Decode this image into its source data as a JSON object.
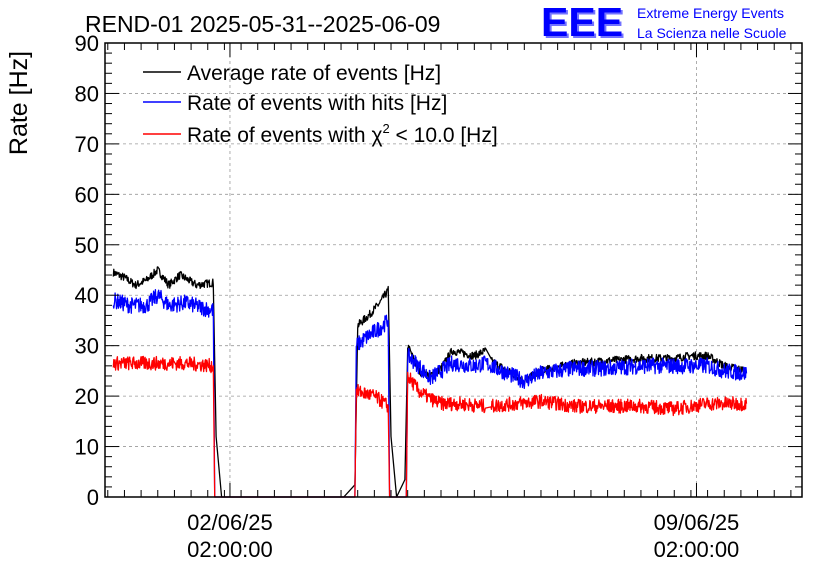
{
  "chart_data": {
    "type": "line",
    "title": "REND-01 2025-05-31--2025-06-09",
    "ylabel": "Rate [Hz]",
    "xlabel": "",
    "ylim": [
      0,
      90
    ],
    "yticks": [
      0,
      10,
      20,
      30,
      40,
      50,
      60,
      70,
      80,
      90
    ],
    "xlim": [
      "2025-05-31 05:00",
      "2025-06-10 16:00"
    ],
    "x_ticks": [
      {
        "x": "2025-06-02 02:00",
        "line1": "02/06/25",
        "line2": "02:00:00"
      },
      {
        "x": "2025-06-09 02:00",
        "line1": "09/06/25",
        "line2": "02:00:00"
      }
    ],
    "grid": true,
    "legend_position": "top-left",
    "series": [
      {
        "name": "Average rate of events [Hz]",
        "color": "#000000",
        "noise": 0.8,
        "points": [
          [
            "2025-05-31 08:00",
            44.5
          ],
          [
            "2025-05-31 12:00",
            43.5
          ],
          [
            "2025-05-31 16:00",
            42.0
          ],
          [
            "2025-05-31 20:00",
            43.0
          ],
          [
            "2025-06-01 00:00",
            45.0
          ],
          [
            "2025-06-01 04:00",
            42.0
          ],
          [
            "2025-06-01 08:00",
            44.0
          ],
          [
            "2025-06-01 14:00",
            42.0
          ],
          [
            "2025-06-01 20:00",
            42.5
          ],
          [
            "2025-06-01 21:00",
            12.0
          ],
          [
            "2025-06-01 23:00",
            0.0
          ],
          [
            "2025-06-03 19:00",
            0.0
          ],
          [
            "2025-06-03 23:00",
            3.0
          ],
          [
            "2025-06-04 00:00",
            34.0
          ],
          [
            "2025-06-04 04:00",
            36.0
          ],
          [
            "2025-06-04 08:00",
            38.5
          ],
          [
            "2025-06-04 11:00",
            41.0
          ],
          [
            "2025-06-04 12:00",
            12.0
          ],
          [
            "2025-06-04 14:00",
            0.0
          ],
          [
            "2025-06-04 17:00",
            3.0
          ],
          [
            "2025-06-04 18:00",
            30.0
          ],
          [
            "2025-06-04 22:00",
            25.0
          ],
          [
            "2025-06-05 02:00",
            24.0
          ],
          [
            "2025-06-05 06:00",
            25.5
          ],
          [
            "2025-06-05 10:00",
            29.0
          ],
          [
            "2025-06-05 14:00",
            28.5
          ],
          [
            "2025-06-05 18:00",
            28.0
          ],
          [
            "2025-06-05 22:00",
            29.0
          ],
          [
            "2025-06-06 00:00",
            27.0
          ],
          [
            "2025-06-06 12:00",
            23.0
          ],
          [
            "2025-06-06 18:00",
            25.0
          ],
          [
            "2025-06-07 06:00",
            26.5
          ],
          [
            "2025-06-07 18:00",
            27.0
          ],
          [
            "2025-06-08 06:00",
            27.5
          ],
          [
            "2025-06-08 18:00",
            27.5
          ],
          [
            "2025-06-09 00:00",
            28.0
          ],
          [
            "2025-06-09 06:00",
            28.0
          ],
          [
            "2025-06-09 12:00",
            26.0
          ],
          [
            "2025-06-09 20:00",
            25.0
          ]
        ]
      },
      {
        "name": "Rate of events with hits [Hz]",
        "color": "#0000ff",
        "noise": 1.6,
        "points": [
          [
            "2025-05-31 08:00",
            39.0
          ],
          [
            "2025-05-31 14:00",
            38.0
          ],
          [
            "2025-05-31 20:00",
            38.0
          ],
          [
            "2025-06-01 00:00",
            40.0
          ],
          [
            "2025-06-01 04:00",
            38.0
          ],
          [
            "2025-06-01 10:00",
            38.5
          ],
          [
            "2025-06-01 16:00",
            37.5
          ],
          [
            "2025-06-01 20:00",
            37.0
          ],
          [
            "2025-06-01 20:30",
            0.0
          ],
          [
            "2025-06-03 23:00",
            0.0
          ],
          [
            "2025-06-03 23:30",
            30.0
          ],
          [
            "2025-06-04 04:00",
            32.0
          ],
          [
            "2025-06-04 08:00",
            33.5
          ],
          [
            "2025-06-04 11:00",
            35.0
          ],
          [
            "2025-06-04 11:30",
            0.0
          ],
          [
            "2025-06-04 17:30",
            0.0
          ],
          [
            "2025-06-04 18:00",
            28.0
          ],
          [
            "2025-06-04 22:00",
            26.0
          ],
          [
            "2025-06-05 02:00",
            23.5
          ],
          [
            "2025-06-05 06:00",
            25.0
          ],
          [
            "2025-06-05 10:00",
            26.5
          ],
          [
            "2025-06-05 18:00",
            26.0
          ],
          [
            "2025-06-05 22:00",
            26.5
          ],
          [
            "2025-06-06 12:00",
            23.0
          ],
          [
            "2025-06-06 18:00",
            24.5
          ],
          [
            "2025-06-07 06:00",
            25.5
          ],
          [
            "2025-06-07 18:00",
            25.5
          ],
          [
            "2025-06-08 06:00",
            26.0
          ],
          [
            "2025-06-08 18:00",
            26.0
          ],
          [
            "2025-06-09 06:00",
            26.0
          ],
          [
            "2025-06-09 12:00",
            25.0
          ],
          [
            "2025-06-09 20:00",
            24.5
          ]
        ]
      },
      {
        "name": "Rate of events with χ² < 10.0 [Hz]",
        "color": "#ff0000",
        "noise": 1.4,
        "points": [
          [
            "2025-05-31 08:00",
            26.5
          ],
          [
            "2025-05-31 16:00",
            26.5
          ],
          [
            "2025-06-01 00:00",
            26.5
          ],
          [
            "2025-06-01 10:00",
            26.5
          ],
          [
            "2025-06-01 20:00",
            26.0
          ],
          [
            "2025-06-01 20:30",
            0.0
          ],
          [
            "2025-06-03 23:00",
            0.0
          ],
          [
            "2025-06-03 23:30",
            21.0
          ],
          [
            "2025-06-04 06:00",
            20.0
          ],
          [
            "2025-06-04 11:00",
            18.0
          ],
          [
            "2025-06-04 11:30",
            0.0
          ],
          [
            "2025-06-04 17:30",
            0.0
          ],
          [
            "2025-06-04 18:00",
            24.0
          ],
          [
            "2025-06-04 22:00",
            21.0
          ],
          [
            "2025-06-05 02:00",
            19.5
          ],
          [
            "2025-06-05 06:00",
            18.5
          ],
          [
            "2025-06-05 12:00",
            18.5
          ],
          [
            "2025-06-05 22:00",
            18.0
          ],
          [
            "2025-06-06 00:00",
            18.0
          ],
          [
            "2025-06-06 18:00",
            19.0
          ],
          [
            "2025-06-07 06:00",
            18.0
          ],
          [
            "2025-06-07 18:00",
            18.0
          ],
          [
            "2025-06-08 06:00",
            18.0
          ],
          [
            "2025-06-08 18:00",
            17.5
          ],
          [
            "2025-06-09 06:00",
            18.5
          ],
          [
            "2025-06-09 20:00",
            18.5
          ]
        ]
      }
    ]
  },
  "logo": {
    "mark": "EEE",
    "line1": "Extreme Energy Events",
    "line2": "La Scienza nelle Scuole",
    "color": "#0000ff"
  },
  "legend_text": {
    "chi_prefix": "Rate of events with ",
    "chi_symbol": "χ",
    "chi_sup": "2",
    "chi_suffix": " < 10.0 [Hz]"
  }
}
